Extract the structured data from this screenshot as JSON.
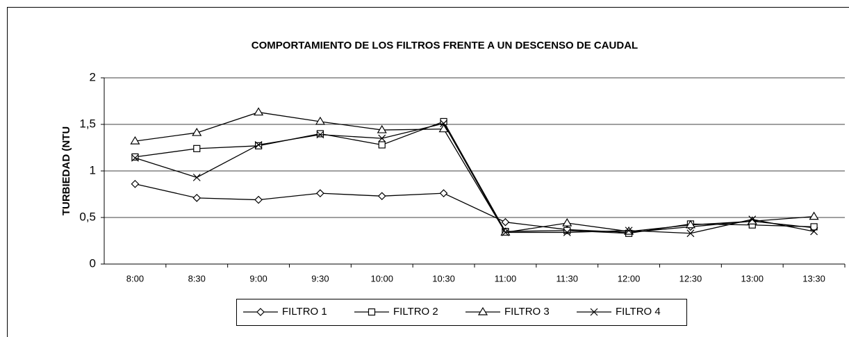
{
  "chart_data": {
    "type": "line",
    "title": "COMPORTAMIENTO DE LOS FILTROS FRENTE A UN DESCENSO DE CAUDAL",
    "y_label": "TURBIEDAD (NTU",
    "categories": [
      "8:00",
      "8:30",
      "9:00",
      "9:30",
      "10:00",
      "10:30",
      "11:00",
      "11:30",
      "12:00",
      "12:30",
      "13:00",
      "13:30"
    ],
    "series": [
      {
        "name": "FILTRO 1",
        "color": "#000000",
        "marker": "diamond",
        "values": [
          0.86,
          0.71,
          0.69,
          0.76,
          0.73,
          0.76,
          0.45,
          0.37,
          0.34,
          0.4,
          0.46,
          0.39
        ]
      },
      {
        "name": "FILTRO 2",
        "color": "#000000",
        "marker": "square",
        "values": [
          1.15,
          1.24,
          1.27,
          1.4,
          1.28,
          1.53,
          0.35,
          0.36,
          0.33,
          0.43,
          0.42,
          0.4
        ]
      },
      {
        "name": "FILTRO 3",
        "color": "#000000",
        "marker": "triangle",
        "values": [
          1.32,
          1.41,
          1.63,
          1.53,
          1.44,
          1.45,
          0.34,
          0.44,
          0.35,
          0.42,
          0.46,
          0.51
        ]
      },
      {
        "name": "FILTRO 4",
        "color": "#000000",
        "marker": "x",
        "values": [
          1.14,
          0.93,
          1.28,
          1.39,
          1.35,
          1.51,
          0.34,
          0.34,
          0.36,
          0.33,
          0.48,
          0.35
        ]
      }
    ],
    "ylim": [
      0,
      2
    ],
    "yticks": [
      0,
      {
        "value": 0.5,
        "label": "0,5"
      },
      1,
      {
        "value": 1.5,
        "label": "1,5"
      },
      2
    ],
    "grid": true,
    "legend": "bottom"
  }
}
